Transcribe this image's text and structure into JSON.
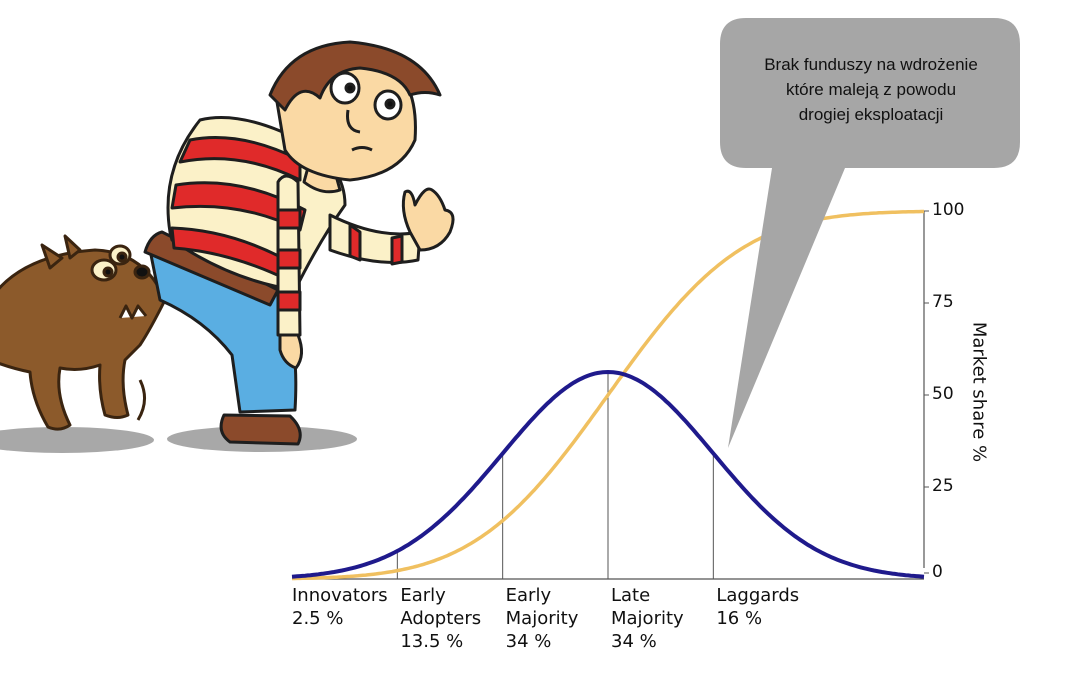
{
  "callout": {
    "lines": [
      "Brak funduszy na wdrożenie",
      "które maleją z powodu",
      "drogiej eksploatacji"
    ],
    "fill": "#a6a6a6"
  },
  "chart_data": {
    "type": "line",
    "title": "",
    "xlabel": "",
    "ylabel": "Market share %",
    "ylim": [
      0,
      100
    ],
    "yticks": [
      0,
      25,
      50,
      75,
      100
    ],
    "x_range": [
      -3,
      3
    ],
    "segments": [
      {
        "name": "Innovators",
        "share": "2.5 %",
        "start": -3.0,
        "end": -2.0
      },
      {
        "name": "Early Adopters",
        "share": "13.5 %",
        "start": -2.0,
        "end": -1.0
      },
      {
        "name": "Early Majority",
        "share": "34 %",
        "start": -1.0,
        "end": 0.0
      },
      {
        "name": "Late Majority",
        "share": "34 %",
        "start": 0.0,
        "end": 1.0
      },
      {
        "name": "Laggards",
        "share": "16 %",
        "start": 1.0,
        "end": 3.0
      }
    ],
    "series": [
      {
        "kind": "adoption-bell-curve",
        "color": "#1f1a8c"
      },
      {
        "kind": "cumulative-market-share",
        "color": "#f0c060"
      }
    ]
  },
  "colors": {
    "axis": "#555555",
    "shirt_red": "#e02a2a",
    "shirt_cream": "#fbf1c8",
    "jeans": "#5aaee2",
    "skin": "#fad9a4",
    "hair": "#8b4a2b",
    "dog": "#8c5a2b",
    "shadow": "#a8a8a8"
  }
}
